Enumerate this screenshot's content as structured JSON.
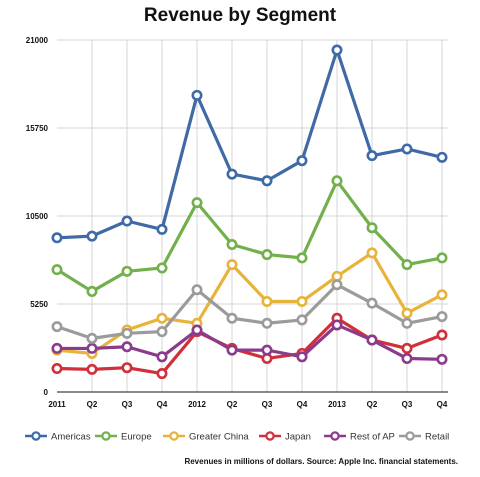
{
  "chart_data": {
    "type": "line",
    "title": "Revenue by Segment",
    "categories": [
      "2011",
      "Q2",
      "Q3",
      "Q4",
      "2012",
      "Q2",
      "Q3",
      "Q4",
      "2013",
      "Q2",
      "Q3",
      "Q4"
    ],
    "ylim": [
      0,
      21000
    ],
    "yticks": [
      0,
      5250,
      10500,
      15750,
      21000
    ],
    "grid": true,
    "legend_position": "bottom",
    "series": [
      {
        "name": "Americas",
        "color": "#3f6aa6",
        "values": [
          9200,
          9300,
          10200,
          9700,
          17700,
          13000,
          12600,
          13800,
          20400,
          14100,
          14500,
          14000
        ]
      },
      {
        "name": "Europe",
        "color": "#72b04c",
        "values": [
          7300,
          6000,
          7200,
          7400,
          11300,
          8800,
          8200,
          8000,
          12600,
          9800,
          7600,
          8000
        ]
      },
      {
        "name": "Greater China",
        "color": "#e8b33a",
        "values": [
          2500,
          2300,
          3700,
          4400,
          4100,
          7600,
          5400,
          5400,
          6900,
          8300,
          4700,
          5800
        ]
      },
      {
        "name": "Japan",
        "color": "#d12f3a",
        "values": [
          1400,
          1350,
          1450,
          1100,
          3600,
          2600,
          2000,
          2300,
          4400,
          3100,
          2600,
          3400
        ]
      },
      {
        "name": "Rest of AP",
        "color": "#8a3b8c",
        "values": [
          2600,
          2600,
          2700,
          2100,
          3700,
          2500,
          2500,
          2100,
          4000,
          3100,
          2000,
          1950
        ]
      },
      {
        "name": "Retail",
        "color": "#9b9b9b",
        "values": [
          3900,
          3200,
          3500,
          3600,
          6100,
          4400,
          4100,
          4300,
          6400,
          5300,
          4100,
          4500
        ]
      }
    ],
    "source_note": "Revenues in millions of dollars. Source: Apple Inc. financial statements."
  }
}
